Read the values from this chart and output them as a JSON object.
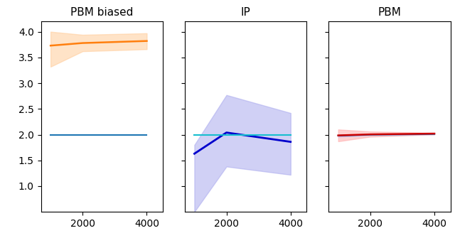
{
  "titles": [
    "PBM biased",
    "IP",
    "PBM"
  ],
  "x_values": [
    1000,
    2000,
    4000
  ],
  "ylim": [
    0.5,
    4.2
  ],
  "yticks": [
    1.0,
    1.5,
    2.0,
    2.5,
    3.0,
    3.5,
    4.0
  ],
  "xlim": [
    700,
    4500
  ],
  "xticks": [
    2000,
    4000
  ],
  "panel0": {
    "line1_color": "#1f77b4",
    "line1_mean": [
      2.0,
      2.0,
      2.0
    ],
    "line2_color": "#ff7f0e",
    "line2_mean": [
      3.73,
      3.78,
      3.82
    ],
    "line2_lo": [
      3.32,
      3.62,
      3.66
    ],
    "line2_hi": [
      4.0,
      3.94,
      3.97
    ],
    "fill2_color": "#ffcc99",
    "fill2_alpha": 0.55
  },
  "panel1": {
    "line1_color": "#17becf",
    "line1_mean": [
      2.0,
      2.0,
      2.0
    ],
    "line2_color": "#0000cc",
    "line2_mean": [
      1.63,
      2.04,
      1.86
    ],
    "line2_lo": [
      0.5,
      1.38,
      1.22
    ],
    "line2_hi": [
      1.8,
      2.77,
      2.42
    ],
    "fill2_color": "#aaaaee",
    "fill2_alpha": 0.55
  },
  "panel2": {
    "line1_color": "#1f77b4",
    "line1_mean": [
      1.98,
      1.998,
      2.01
    ],
    "line1_lo": [
      1.96,
      1.99,
      2.005
    ],
    "line1_hi": [
      1.998,
      2.005,
      2.015
    ],
    "line2_color": "#cc0000",
    "line2_mean": [
      1.985,
      2.005,
      2.02
    ],
    "line2_lo": [
      1.87,
      1.96,
      2.005
    ],
    "line2_hi": [
      2.1,
      2.06,
      2.035
    ],
    "fill1_color": "#aaaaee",
    "fill1_alpha": 0.45,
    "fill2_color": "#ffaaaa",
    "fill2_alpha": 0.55
  }
}
